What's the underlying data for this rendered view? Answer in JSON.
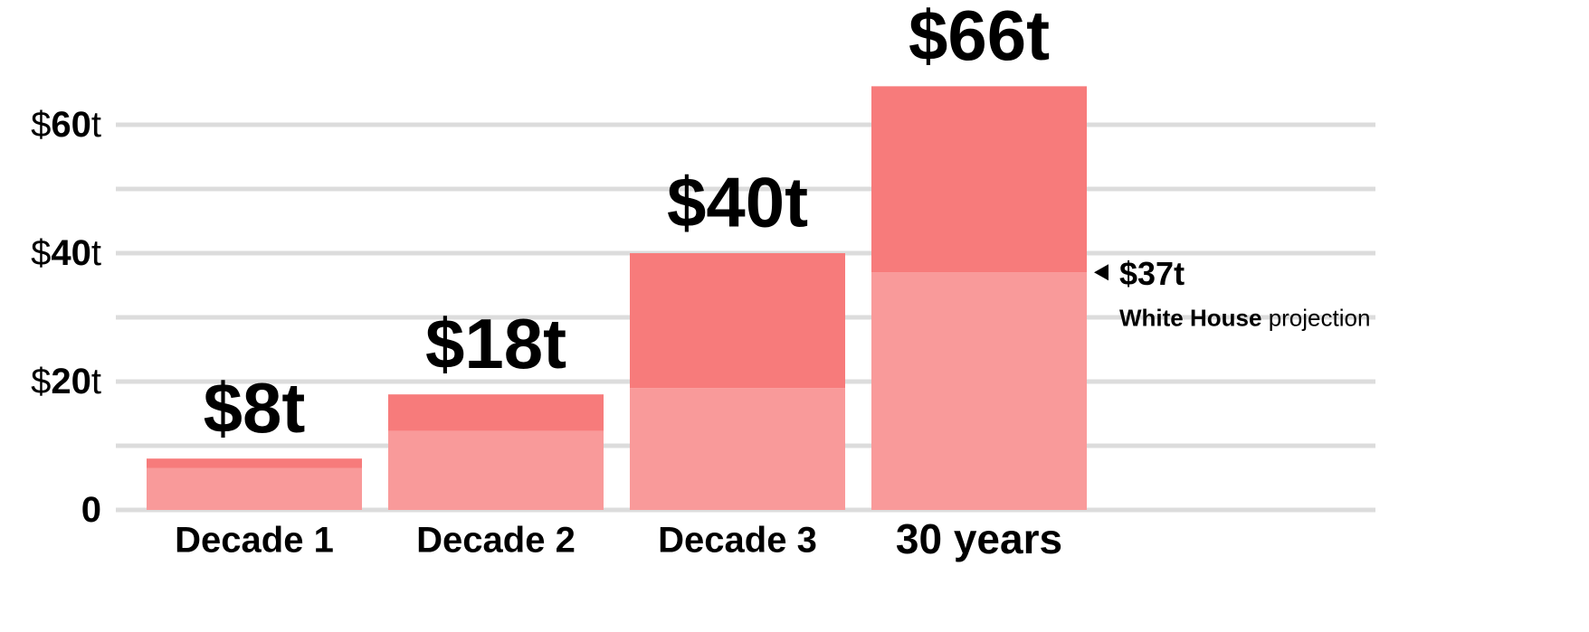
{
  "chart_data": {
    "type": "stacked_bar",
    "categories": [
      "Decade 1",
      "Decade 2",
      "Decade 3",
      "30 years"
    ],
    "series": [
      {
        "color": "#f99a9a",
        "values": [
          6.5,
          12.3,
          19,
          37
        ]
      },
      {
        "color": "#f77b7b",
        "values": [
          1.5,
          5.7,
          21,
          29
        ]
      }
    ],
    "totals": [
      8,
      18,
      40,
      66
    ],
    "total_labels": [
      "$8t",
      "$18t",
      "$40t",
      "$66t"
    ],
    "ylim": [
      0,
      70
    ],
    "yticks": [
      0,
      {
        "value": 20,
        "label": "$20t"
      },
      {
        "value": 40,
        "label": "$40t"
      },
      {
        "value": 60,
        "label": "$60t"
      }
    ],
    "minor_yticks": [
      10,
      30,
      50
    ],
    "grid": true,
    "annotation": {
      "value": 37,
      "label": "$37t",
      "bold_text": "White House",
      "text": "projection"
    }
  }
}
